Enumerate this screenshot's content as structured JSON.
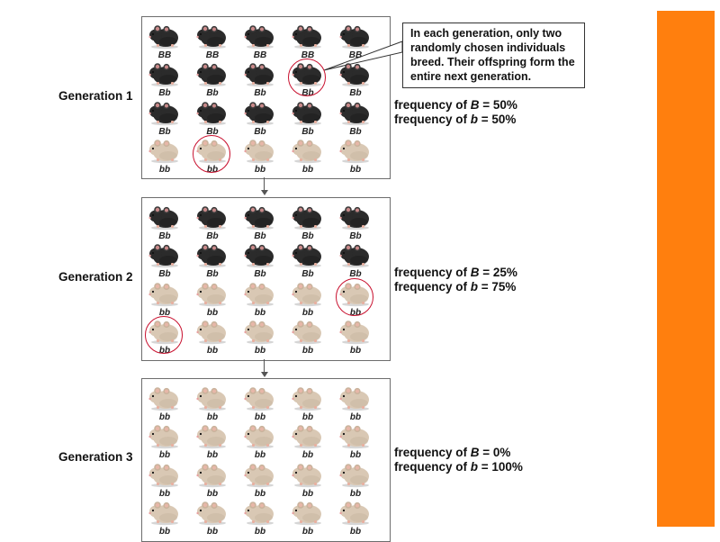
{
  "callout_text": "In each generation, only two randomly chosen individuals breed. Their offspring form the entire next generation.",
  "colors": {
    "accent": "#ff7f0e",
    "highlight_circle": "#c8102e",
    "black_mouse": "#2b2b2b",
    "tan_mouse": "#d9c8b4"
  },
  "generations": [
    {
      "label": "Generation 1",
      "freq_B_prefix": "frequency of ",
      "freq_B_allele": "B",
      "freq_B_value": " = 50%",
      "freq_b_prefix": "frequency of ",
      "freq_b_allele": "b",
      "freq_b_value": " = 50%",
      "grid": [
        [
          "BB",
          "BB",
          "BB",
          "BB",
          "BB"
        ],
        [
          "Bb",
          "Bb",
          "Bb",
          "Bb",
          "Bb"
        ],
        [
          "Bb",
          "Bb",
          "Bb",
          "Bb",
          "Bb"
        ],
        [
          "bb",
          "bb",
          "bb",
          "bb",
          "bb"
        ]
      ],
      "circled": [
        [
          1,
          3
        ],
        [
          3,
          1
        ]
      ]
    },
    {
      "label": "Generation 2",
      "freq_B_prefix": "frequency of ",
      "freq_B_allele": "B",
      "freq_B_value": " = 25%",
      "freq_b_prefix": "frequency of ",
      "freq_b_allele": "b",
      "freq_b_value": " = 75%",
      "grid": [
        [
          "Bb",
          "Bb",
          "Bb",
          "Bb",
          "Bb"
        ],
        [
          "Bb",
          "Bb",
          "Bb",
          "Bb",
          "Bb"
        ],
        [
          "bb",
          "bb",
          "bb",
          "bb",
          "bb"
        ],
        [
          "bb",
          "bb",
          "bb",
          "bb",
          "bb"
        ]
      ],
      "circled": [
        [
          2,
          4
        ],
        [
          3,
          0
        ]
      ]
    },
    {
      "label": "Generation 3",
      "freq_B_prefix": "frequency of ",
      "freq_B_allele": "B",
      "freq_B_value": " = 0%",
      "freq_b_prefix": "frequency of ",
      "freq_b_allele": "b",
      "freq_b_value": " = 100%",
      "grid": [
        [
          "bb",
          "bb",
          "bb",
          "bb",
          "bb"
        ],
        [
          "bb",
          "bb",
          "bb",
          "bb",
          "bb"
        ],
        [
          "bb",
          "bb",
          "bb",
          "bb",
          "bb"
        ],
        [
          "bb",
          "bb",
          "bb",
          "bb",
          "bb"
        ]
      ],
      "circled": []
    }
  ]
}
